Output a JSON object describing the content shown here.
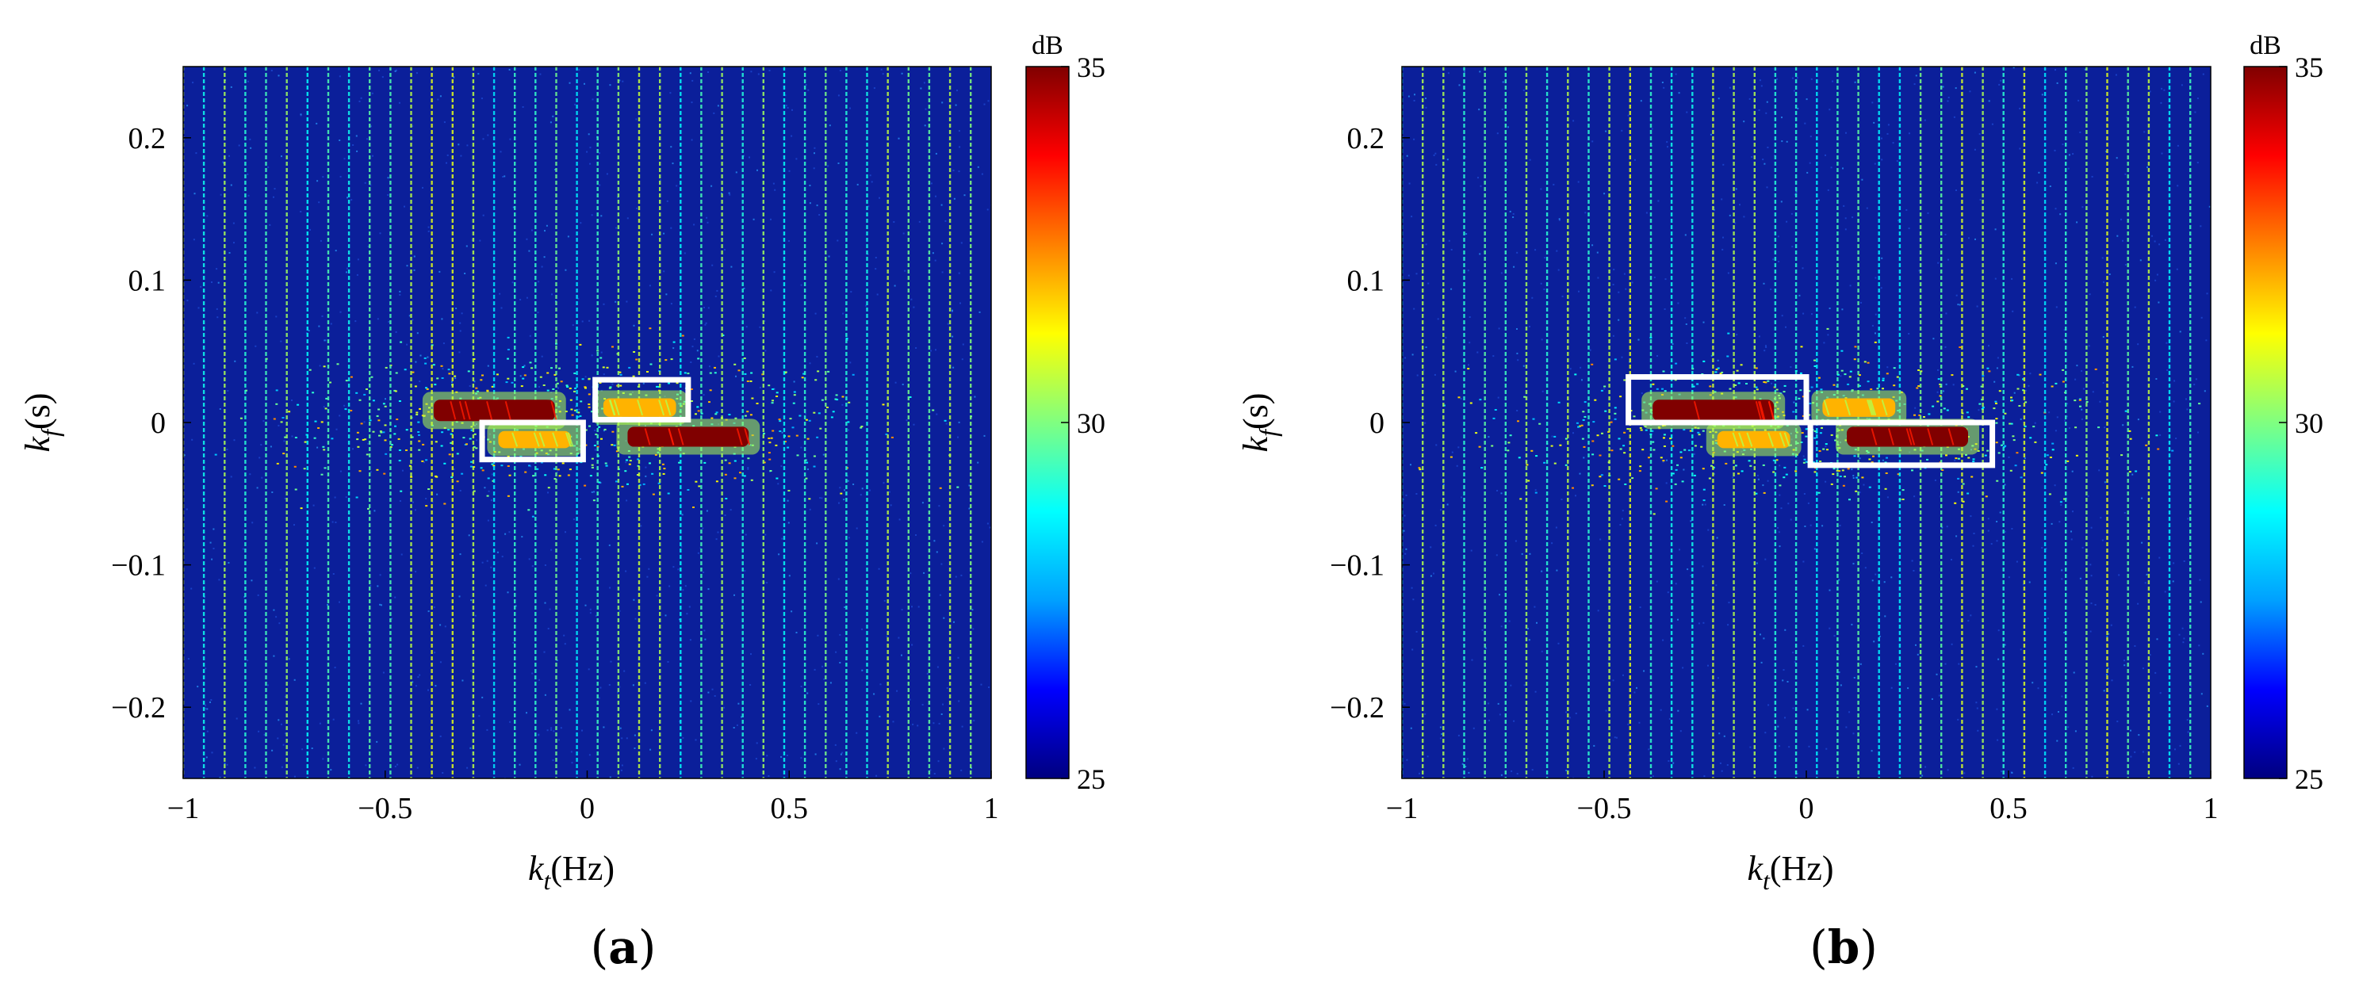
{
  "colors": {
    "background": "#0b1f9a",
    "highlight_box": "#ffffff",
    "colormap_stops": [
      "#00007f",
      "#0000ff",
      "#00a0ff",
      "#00ffff",
      "#80ff80",
      "#ffff00",
      "#ff8000",
      "#ff0000",
      "#800000"
    ]
  },
  "chart_data": [
    {
      "type": "heatmap",
      "panel_label": "a",
      "xlabel": "k",
      "xlabel_sub": "t",
      "xlabel_unit": "(Hz)",
      "ylabel": "k",
      "ylabel_sub": "f",
      "ylabel_unit": "(s)",
      "xlim": [
        -1,
        1
      ],
      "ylim": [
        -0.25,
        0.25
      ],
      "xticks": [
        -1,
        -0.5,
        0,
        0.5,
        1
      ],
      "xtick_labels": [
        "−1",
        "−0.5",
        "0",
        "0.5",
        "1"
      ],
      "yticks": [
        0.2,
        0.1,
        0,
        -0.1,
        -0.2
      ],
      "ytick_labels": [
        "0.2",
        "0.1",
        "0",
        "−0.1",
        "−0.2"
      ],
      "colorbar": {
        "unit": "dB",
        "min": 25,
        "max": 35,
        "ticks": [
          25,
          30,
          35
        ],
        "tick_labels": [
          "25",
          "30",
          "35"
        ]
      },
      "periodic_lines_spacing_hz": 0.0513,
      "hot_regions": [
        {
          "kt": [
            -0.38,
            -0.08
          ],
          "kf": [
            0.001,
            0.016
          ],
          "db": 35
        },
        {
          "kt": [
            0.1,
            0.4
          ],
          "kf": [
            -0.017,
            -0.003
          ],
          "db": 35
        },
        {
          "kt": [
            -0.22,
            -0.04
          ],
          "kf": [
            -0.018,
            -0.006
          ],
          "db": 32
        },
        {
          "kt": [
            0.04,
            0.22
          ],
          "kf": [
            0.004,
            0.017
          ],
          "db": 32
        }
      ],
      "highlight_boxes": [
        {
          "kt": [
            0.02,
            0.25
          ],
          "kf": [
            0.002,
            0.03
          ]
        },
        {
          "kt": [
            -0.26,
            -0.01
          ],
          "kf": [
            -0.026,
            0.0
          ]
        }
      ]
    },
    {
      "type": "heatmap",
      "panel_label": "b",
      "xlabel": "k",
      "xlabel_sub": "t",
      "xlabel_unit": "(Hz)",
      "ylabel": "k",
      "ylabel_sub": "f",
      "ylabel_unit": "(s)",
      "xlim": [
        -1,
        1
      ],
      "ylim": [
        -0.25,
        0.25
      ],
      "xticks": [
        -1,
        -0.5,
        0,
        0.5,
        1
      ],
      "xtick_labels": [
        "−1",
        "−0.5",
        "0",
        "0.5",
        "1"
      ],
      "yticks": [
        0.2,
        0.1,
        0,
        -0.1,
        -0.2
      ],
      "ytick_labels": [
        "0.2",
        "0.1",
        "0",
        "−0.1",
        "−0.2"
      ],
      "colorbar": {
        "unit": "dB",
        "min": 25,
        "max": 35,
        "ticks": [
          25,
          30,
          35
        ],
        "tick_labels": [
          "25",
          "30",
          "35"
        ]
      },
      "periodic_lines_spacing_hz": 0.0513,
      "hot_regions": [
        {
          "kt": [
            -0.38,
            -0.08
          ],
          "kf": [
            0.001,
            0.016
          ],
          "db": 35
        },
        {
          "kt": [
            0.1,
            0.4
          ],
          "kf": [
            -0.017,
            -0.003
          ],
          "db": 35
        },
        {
          "kt": [
            -0.22,
            -0.04
          ],
          "kf": [
            -0.018,
            -0.006
          ],
          "db": 32
        },
        {
          "kt": [
            0.04,
            0.22
          ],
          "kf": [
            0.004,
            0.017
          ],
          "db": 32
        }
      ],
      "highlight_boxes": [
        {
          "kt": [
            -0.44,
            0.0
          ],
          "kf": [
            0.0,
            0.032
          ]
        },
        {
          "kt": [
            0.01,
            0.46
          ],
          "kf": [
            -0.03,
            0.0
          ]
        }
      ]
    }
  ]
}
